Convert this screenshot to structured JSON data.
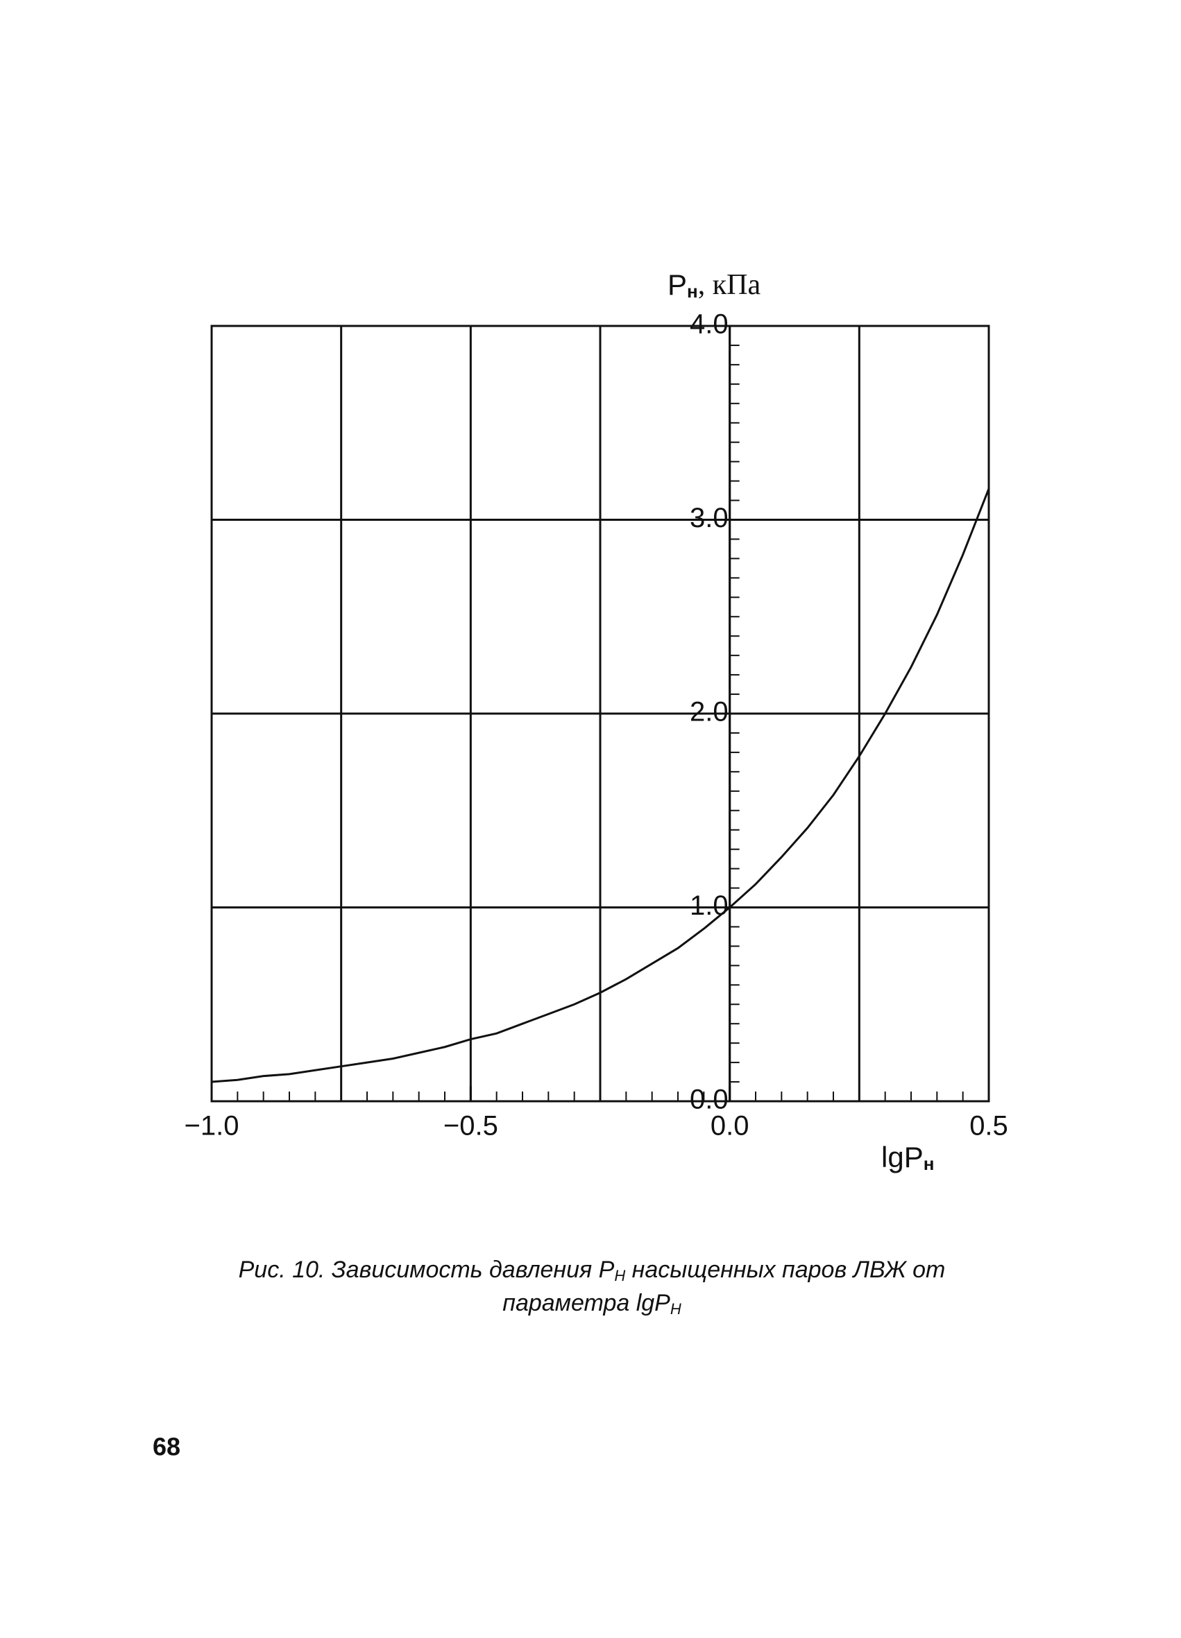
{
  "chart_data": {
    "type": "line",
    "y_label": {
      "symbol": "P",
      "sub": "н",
      "unit": ", кПа"
    },
    "x_label": {
      "symbol": "lgP",
      "sub": "н"
    },
    "x": [
      -1.0,
      -0.95,
      -0.9,
      -0.85,
      -0.8,
      -0.75,
      -0.7,
      -0.65,
      -0.6,
      -0.55,
      -0.5,
      -0.45,
      -0.4,
      -0.35,
      -0.3,
      -0.25,
      -0.2,
      -0.15,
      -0.1,
      -0.05,
      0.0,
      0.05,
      0.1,
      0.15,
      0.2,
      0.25,
      0.3,
      0.35,
      0.4,
      0.45,
      0.5
    ],
    "series": [
      {
        "color": "#111111",
        "values": [
          0.1,
          0.11,
          0.13,
          0.14,
          0.16,
          0.18,
          0.2,
          0.22,
          0.25,
          0.28,
          0.32,
          0.35,
          0.4,
          0.45,
          0.5,
          0.56,
          0.63,
          0.71,
          0.79,
          0.89,
          1.0,
          1.12,
          1.26,
          1.41,
          1.58,
          1.78,
          2.0,
          2.24,
          2.51,
          2.82,
          3.16
        ]
      }
    ],
    "xlim": [
      -1.0,
      0.5
    ],
    "ylim": [
      0.0,
      4.0
    ],
    "xticks": [
      {
        "value": -1.0,
        "label": "−1.0"
      },
      {
        "value": -0.5,
        "label": "−0.5"
      },
      {
        "value": 0.0,
        "label": "0.0"
      },
      {
        "value": 0.5,
        "label": "0.5"
      }
    ],
    "yticks": [
      {
        "value": 0.0,
        "label": "0.0"
      },
      {
        "value": 1.0,
        "label": "1.0"
      },
      {
        "value": 2.0,
        "label": "2.0"
      },
      {
        "value": 3.0,
        "label": "3.0"
      },
      {
        "value": 4.0,
        "label": "4.0"
      }
    ],
    "x_gridlines": [
      -0.75,
      -0.5,
      -0.25,
      0.0,
      0.25
    ],
    "x_minor_step": 0.05,
    "y_minor_step": 0.1,
    "y_axis_at": 0.0,
    "grid": true
  },
  "caption": {
    "line1": {
      "prefix": "Рис. 10. Зависимость давления P",
      "sub": "Н",
      "suffix": " насыщенных паров ЛВЖ от"
    },
    "line2": {
      "prefix": "параметра lgP",
      "sub": "Н"
    }
  },
  "page_number": "68"
}
